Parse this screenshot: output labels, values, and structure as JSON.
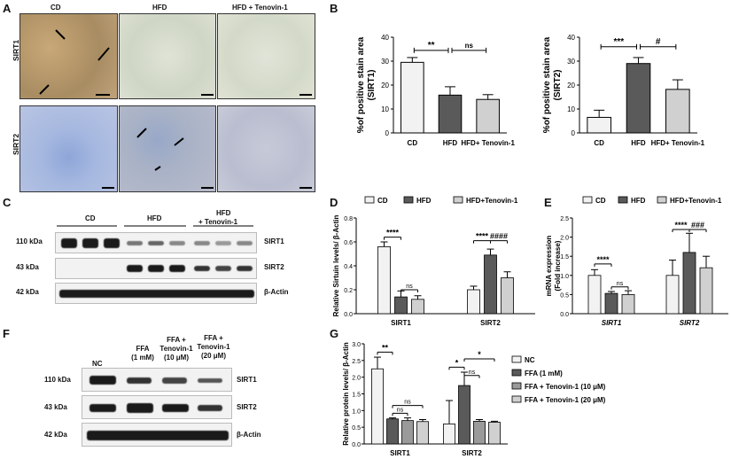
{
  "panels": {
    "A": {
      "letter": "A",
      "columns": [
        "CD",
        "HFD",
        "HFD + Tenovin-1"
      ],
      "rows": [
        "SIRT1",
        "SIRT2"
      ]
    },
    "B": {
      "letter": "B"
    },
    "C": {
      "letter": "C",
      "groups": [
        "CD",
        "HFD",
        "HFD\n+ Tenovin-1"
      ],
      "group_line1": [
        "CD",
        "HFD",
        "HFD"
      ],
      "group_line2": [
        "",
        "",
        "+ Tenovin-1"
      ],
      "kda": [
        "110 kDa",
        "43 kDa",
        "42 kDa"
      ],
      "proteins": [
        "SIRT1",
        "SIRT2",
        "β-Actin"
      ]
    },
    "D": {
      "letter": "D"
    },
    "E": {
      "letter": "E"
    },
    "F": {
      "letter": "F",
      "lanes": [
        [
          "NC"
        ],
        [
          "FFA",
          "(1 mM)"
        ],
        [
          "FFA +",
          "Tenovin-1",
          "(10 μM)"
        ],
        [
          "FFA +",
          "Tenovin-1",
          "(20 μM)"
        ]
      ],
      "kda": [
        "110 kDa",
        "43 kDa",
        "42 kDa"
      ],
      "proteins": [
        "SIRT1",
        "SIRT2",
        "β-Actin"
      ]
    },
    "G": {
      "letter": "G"
    }
  },
  "chart_data": [
    {
      "id": "B1",
      "type": "bar",
      "categories": [
        "CD",
        "HFD",
        "HFD+ Tenovin-1"
      ],
      "values": [
        29.5,
        15.8,
        14.0
      ],
      "errors": [
        2.0,
        3.5,
        2.0
      ],
      "colors": [
        "#f2f2f2",
        "#5a5a5a",
        "#d0d0d0"
      ],
      "ylabel": "%of positive stain area (SIRT1)",
      "ylim": [
        0,
        40
      ],
      "yticks": [
        0,
        10,
        20,
        30,
        40
      ],
      "sig": [
        {
          "from": 0,
          "to": 1,
          "label": "**",
          "y": 34.5
        },
        {
          "from": 1,
          "to": 2,
          "label": "ns",
          "y": 34.5
        }
      ]
    },
    {
      "id": "B2",
      "type": "bar",
      "categories": [
        "CD",
        "HFD",
        "HFD+ Tenovin-1"
      ],
      "values": [
        6.5,
        29.0,
        18.2
      ],
      "errors": [
        3.0,
        2.5,
        4.0
      ],
      "colors": [
        "#f2f2f2",
        "#5a5a5a",
        "#d0d0d0"
      ],
      "ylabel": "%of positive stain area (SIRT2)",
      "ylim": [
        0,
        40
      ],
      "yticks": [
        0,
        10,
        20,
        30,
        40
      ],
      "sig": [
        {
          "from": 0,
          "to": 1,
          "label": "***",
          "y": 36
        },
        {
          "from": 1,
          "to": 2,
          "label": "#",
          "y": 36
        }
      ]
    },
    {
      "id": "D",
      "type": "bar",
      "categories": [
        "SIRT1",
        "SIRT2"
      ],
      "series": [
        {
          "name": "CD",
          "values": [
            0.56,
            0.2
          ],
          "errors": [
            0.04,
            0.03
          ],
          "color": "#f2f2f2"
        },
        {
          "name": "HFD",
          "values": [
            0.14,
            0.49
          ],
          "errors": [
            0.05,
            0.05
          ],
          "color": "#5a5a5a"
        },
        {
          "name": "HFD+Tenovin-1",
          "values": [
            0.12,
            0.3
          ],
          "errors": [
            0.03,
            0.05
          ],
          "color": "#d0d0d0"
        }
      ],
      "ylabel": "Relative Sirtuin levels/ β-Actin",
      "ylim": [
        0,
        0.8
      ],
      "yticks": [
        0.0,
        0.2,
        0.4,
        0.6,
        0.8
      ],
      "sig": [
        {
          "cat": 0,
          "from": 0,
          "to": 1,
          "label": "****",
          "y": 0.64
        },
        {
          "cat": 0,
          "from": 1,
          "to": 2,
          "label": "ns",
          "y": 0.2
        },
        {
          "cat": 1,
          "from": 0,
          "to": 1,
          "label": "****",
          "y": 0.61
        },
        {
          "cat": 1,
          "from": 1,
          "to": 2,
          "label": "####",
          "y": 0.61
        }
      ]
    },
    {
      "id": "E",
      "type": "bar",
      "categories": [
        "SIRT1",
        "SIRT2"
      ],
      "series": [
        {
          "name": "CD",
          "values": [
            1.0,
            1.0
          ],
          "errors": [
            0.15,
            0.4
          ],
          "color": "#f2f2f2"
        },
        {
          "name": "HFD",
          "values": [
            0.53,
            1.6
          ],
          "errors": [
            0.05,
            0.5
          ],
          "color": "#5a5a5a"
        },
        {
          "name": "HFD+Tenovin-1",
          "values": [
            0.5,
            1.2
          ],
          "errors": [
            0.1,
            0.3
          ],
          "color": "#d0d0d0"
        }
      ],
      "ylabel": "mRNA expression (Fold increase)",
      "ylim": [
        0,
        2.5
      ],
      "yticks": [
        0.0,
        0.5,
        1.0,
        1.5,
        2.0,
        2.5
      ],
      "sig": [
        {
          "cat": 0,
          "from": 0,
          "to": 1,
          "label": "****",
          "y": 1.3
        },
        {
          "cat": 0,
          "from": 1,
          "to": 2,
          "label": "ns",
          "y": 0.7
        },
        {
          "cat": 1,
          "from": 0,
          "to": 1,
          "label": "****",
          "y": 2.2
        },
        {
          "cat": 1,
          "from": 1,
          "to": 2,
          "label": "###",
          "y": 2.2
        }
      ]
    },
    {
      "id": "G",
      "type": "bar",
      "categories": [
        "SIRT1",
        "SIRT2"
      ],
      "series": [
        {
          "name": "NC",
          "values": [
            2.25,
            0.6
          ],
          "errors": [
            0.35,
            0.7
          ],
          "color": "#f2f2f2"
        },
        {
          "name": "FFA (1 mM)",
          "values": [
            0.75,
            1.75
          ],
          "errors": [
            0.03,
            0.4
          ],
          "color": "#5a5a5a"
        },
        {
          "name": "FFA + Tenovin-1 (10 μM)",
          "values": [
            0.7,
            0.68
          ],
          "errors": [
            0.08,
            0.05
          ],
          "color": "#9a9a9a"
        },
        {
          "name": "FFA + Tenovin-1 (20 μM)",
          "values": [
            0.67,
            0.65
          ],
          "errors": [
            0.06,
            0.03
          ],
          "color": "#d0d0d0"
        }
      ],
      "ylabel": "Relative protein levels/ β-Actin",
      "ylim": [
        0,
        3.0
      ],
      "yticks": [
        0.0,
        0.5,
        1.0,
        1.5,
        2.0,
        2.5,
        3.0
      ],
      "sig": [
        {
          "cat": 0,
          "from": 0,
          "to": 1,
          "label": "**",
          "y": 2.75
        },
        {
          "cat": 0,
          "from": 1,
          "to": 2,
          "label": "ns",
          "y": 0.92
        },
        {
          "cat": 0,
          "from": 1,
          "to": 3,
          "label": "ns",
          "y": 1.15
        },
        {
          "cat": 1,
          "from": 0,
          "to": 1,
          "label": "*",
          "y": 2.3
        },
        {
          "cat": 1,
          "from": 1,
          "to": 2,
          "label": "ns",
          "y": 2.05
        },
        {
          "cat": 1,
          "from": 1,
          "to": 3,
          "label": "*",
          "y": 2.55
        }
      ]
    }
  ]
}
